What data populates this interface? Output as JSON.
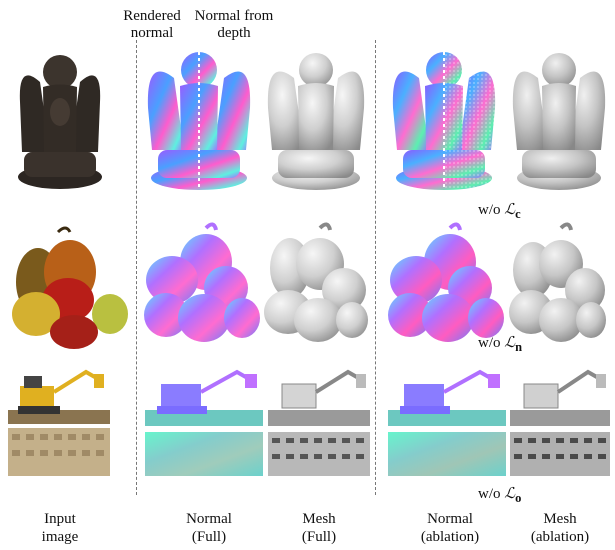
{
  "headers": {
    "rendered_normal_line1": "Rendered",
    "rendered_normal_line2": "normal",
    "normal_from_depth_line1": "Normal from",
    "normal_from_depth_line2": "depth"
  },
  "ablation_labels": {
    "row1_prefix": "w/o ",
    "row1_symbol": "ℒ",
    "row1_sub": "c",
    "row2_prefix": "w/o ",
    "row2_symbol": "ℒ",
    "row2_sub": "n",
    "row3_prefix": "w/o ",
    "row3_symbol": "ℒ",
    "row3_sub": "o"
  },
  "columns": [
    {
      "line1": "Input",
      "line2": "image"
    },
    {
      "line1": "Normal",
      "line2": "(Full)"
    },
    {
      "line1": "Mesh",
      "line2": "(Full)"
    },
    {
      "line1": "Normal",
      "line2": "(ablation)"
    },
    {
      "line1": "Mesh",
      "line2": "(ablation)"
    }
  ],
  "colors": {
    "statue_dark": "#2c2622",
    "apple_red": "#b81e18",
    "apple_yellow": "#d4b030",
    "pear_brown": "#7a5a1c",
    "lego_yellow": "#e0b020",
    "lego_base": "#8a7450",
    "mesh_gray": "#c8c8c8"
  }
}
